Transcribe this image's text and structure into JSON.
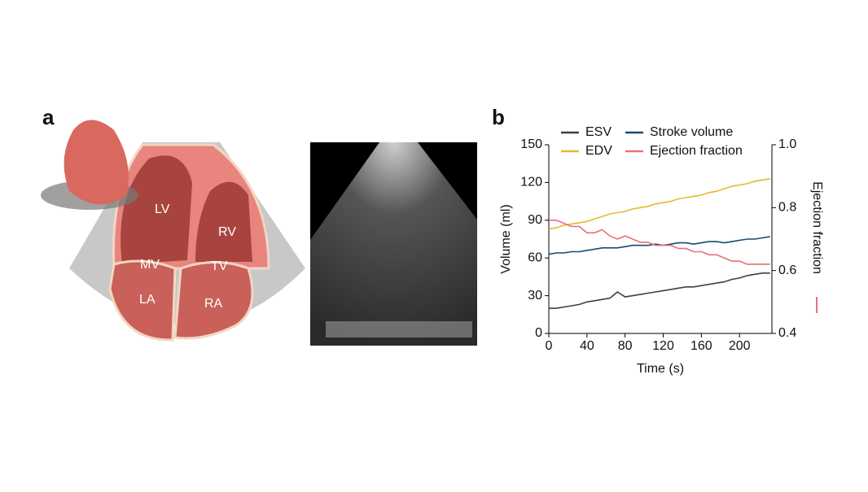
{
  "panels": {
    "a": "a",
    "b": "b"
  },
  "illustration": {
    "labels": [
      "LV",
      "RV",
      "MV",
      "TV",
      "LA",
      "RA"
    ]
  },
  "chart_data": {
    "type": "line",
    "x_label": "Time (s)",
    "y_label": "Volume (ml)",
    "y2_label": "Ejection fraction",
    "x": [
      0,
      8,
      16,
      24,
      32,
      40,
      48,
      56,
      64,
      72,
      80,
      88,
      96,
      104,
      112,
      120,
      128,
      136,
      144,
      152,
      160,
      168,
      176,
      184,
      192,
      200,
      208,
      216,
      224,
      232
    ],
    "series": [
      {
        "name": "ESV",
        "color": "#404040",
        "values": [
          20,
          20,
          21,
          22,
          23,
          25,
          26,
          27,
          28,
          33,
          29,
          30,
          31,
          32,
          33,
          34,
          35,
          36,
          37,
          37,
          38,
          39,
          40,
          41,
          43,
          44,
          46,
          47,
          48,
          48
        ]
      },
      {
        "name": "EDV",
        "color": "#e6b92e",
        "values": [
          83,
          84,
          86,
          87,
          88,
          89,
          91,
          93,
          95,
          96,
          97,
          99,
          100,
          101,
          103,
          104,
          105,
          107,
          108,
          109,
          110,
          112,
          113,
          115,
          117,
          118,
          119,
          121,
          122,
          123
        ]
      },
      {
        "name": "Stroke volume",
        "color": "#134b73",
        "values": [
          63,
          64,
          64,
          65,
          65,
          66,
          67,
          68,
          68,
          68,
          69,
          70,
          70,
          70,
          71,
          70,
          71,
          72,
          72,
          71,
          72,
          73,
          73,
          72,
          73,
          74,
          75,
          75,
          76,
          77
        ]
      },
      {
        "name": "Ejection fraction",
        "color": "#e8707a",
        "axis": "y2",
        "values": [
          0.76,
          0.76,
          0.75,
          0.74,
          0.74,
          0.72,
          0.72,
          0.73,
          0.71,
          0.7,
          0.71,
          0.7,
          0.69,
          0.69,
          0.68,
          0.68,
          0.68,
          0.67,
          0.67,
          0.66,
          0.66,
          0.65,
          0.65,
          0.64,
          0.63,
          0.63,
          0.62,
          0.62,
          0.62,
          0.62
        ]
      }
    ],
    "xlim": [
      0,
      234
    ],
    "xticks": [
      0,
      40,
      80,
      120,
      160,
      200
    ],
    "ylim": [
      0,
      150
    ],
    "yticks": [
      0,
      30,
      60,
      90,
      120,
      150
    ],
    "y2lim": [
      0.4,
      1
    ],
    "y2ticks": [
      0.4,
      0.6,
      0.8,
      {
        "value": 1,
        "label": "1.0"
      }
    ],
    "grid": false
  }
}
